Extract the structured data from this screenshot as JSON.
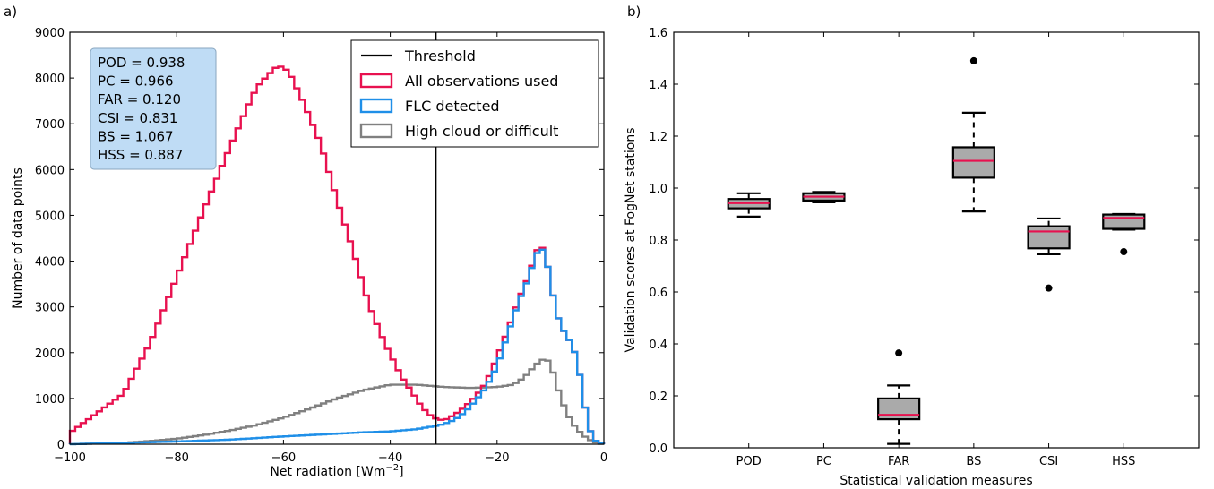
{
  "chart_data": [
    {
      "type": "histogram",
      "panel_label": "a)",
      "xlabel_main": "Net radiation [Wm",
      "xlabel_sup": "−2",
      "xlabel_tail": "]",
      "ylabel": "Number of data points",
      "xlim": [
        -100,
        0
      ],
      "ylim": [
        0,
        9000
      ],
      "xticks": [
        "−100",
        "−80",
        "−60",
        "−40",
        "−20",
        "0"
      ],
      "yticks": [
        "0",
        "1000",
        "2000",
        "3000",
        "4000",
        "5000",
        "6000",
        "7000",
        "8000",
        "9000"
      ],
      "bin_width": 1,
      "bins_start": -100,
      "threshold": -31.5,
      "stats": [
        "POD = 0.938",
        "PC = 0.966",
        "FAR = 0.120",
        "CSI = 0.831",
        "BS = 1.067",
        "HSS = 0.887"
      ],
      "colors": {
        "threshold": "#000000",
        "all": "#e8114f",
        "flc": "#1f8fe8",
        "high": "#808080",
        "stats_box": "#bfdcf5"
      },
      "legend": [
        "Threshold",
        "All observations used",
        "FLC detected",
        "High cloud or difficult"
      ],
      "series": [
        {
          "name": "All observations used",
          "x": [
            -100,
            -90,
            -85,
            -80,
            -75,
            -70,
            -67,
            -65,
            -63,
            -61,
            -59,
            -56,
            -53,
            -50,
            -47,
            -44,
            -41,
            -38,
            -36,
            -34,
            -32,
            -30,
            -28,
            -26,
            -24,
            -22,
            -20,
            -18,
            -16,
            -14,
            -13,
            -12,
            -11,
            -10,
            -9,
            -8,
            -7,
            -6,
            -5,
            -4,
            -3,
            -2,
            -1,
            0
          ],
          "values": [
            250,
            1100,
            2200,
            3650,
            5100,
            6500,
            7300,
            7800,
            8050,
            8280,
            8150,
            7400,
            6550,
            5350,
            4250,
            3050,
            2200,
            1500,
            1150,
            800,
            580,
            520,
            640,
            820,
            1050,
            1350,
            1900,
            2500,
            3150,
            3700,
            4100,
            4380,
            4200,
            3550,
            2950,
            2550,
            2400,
            2150,
            1880,
            1150,
            450,
            120,
            30,
            0
          ]
        },
        {
          "name": "FLC detected",
          "x": [
            -100,
            -90,
            -80,
            -70,
            -60,
            -50,
            -45,
            -40,
            -35,
            -32,
            -30,
            -28,
            -26,
            -24,
            -22,
            -20,
            -18,
            -16,
            -14,
            -13,
            -12,
            -11,
            -10,
            -9,
            -8,
            -7,
            -6,
            -5,
            -4,
            -3,
            -2,
            -1,
            0
          ],
          "values": [
            0,
            30,
            60,
            100,
            170,
            230,
            260,
            280,
            330,
            390,
            440,
            530,
            700,
            950,
            1250,
            1700,
            2400,
            3100,
            3650,
            4050,
            4300,
            4200,
            3550,
            2950,
            2550,
            2400,
            2150,
            1880,
            1150,
            450,
            120,
            30,
            0
          ]
        },
        {
          "name": "High cloud or difficult",
          "x": [
            -100,
            -90,
            -85,
            -80,
            -75,
            -70,
            -65,
            -60,
            -55,
            -50,
            -45,
            -40,
            -35,
            -30,
            -25,
            -20,
            -17,
            -15,
            -13,
            -12,
            -11,
            -10,
            -9,
            -8,
            -7,
            -6,
            -5,
            -4,
            -3,
            -2,
            -1,
            0
          ],
          "values": [
            0,
            30,
            70,
            120,
            200,
            300,
            420,
            580,
            780,
            1000,
            1180,
            1300,
            1300,
            1250,
            1230,
            1250,
            1300,
            1450,
            1700,
            1820,
            1870,
            1780,
            1350,
            1000,
            700,
            480,
            330,
            210,
            120,
            60,
            20,
            0
          ]
        }
      ]
    },
    {
      "type": "box",
      "panel_label": "b)",
      "xlabel": "Statistical validation measures",
      "ylabel": "Validation scores at FogNet stations",
      "ylim": [
        0.0,
        1.6
      ],
      "yticks": [
        "0.0",
        "0.2",
        "0.4",
        "0.6",
        "0.8",
        "1.0",
        "1.2",
        "1.4",
        "1.6"
      ],
      "categories": [
        "POD",
        "PC",
        "FAR",
        "BS",
        "CSI",
        "HSS"
      ],
      "colors": {
        "box": "#aaaaaa",
        "median": "#e8114f",
        "outline": "#000000"
      },
      "boxes": [
        {
          "whislo": 0.89,
          "q1": 0.922,
          "med": 0.942,
          "q3": 0.958,
          "whishi": 0.98,
          "fliers": []
        },
        {
          "whislo": 0.945,
          "q1": 0.952,
          "med": 0.967,
          "q3": 0.98,
          "whishi": 0.985,
          "fliers": []
        },
        {
          "whislo": 0.015,
          "q1": 0.11,
          "med": 0.127,
          "q3": 0.19,
          "whishi": 0.24,
          "fliers": [
            0.365
          ]
        },
        {
          "whislo": 0.91,
          "q1": 1.04,
          "med": 1.105,
          "q3": 1.157,
          "whishi": 1.29,
          "fliers": [
            1.49
          ]
        },
        {
          "whislo": 0.745,
          "q1": 0.768,
          "med": 0.833,
          "q3": 0.853,
          "whishi": 0.883,
          "fliers": [
            0.615
          ]
        },
        {
          "whislo": 0.84,
          "q1": 0.843,
          "med": 0.885,
          "q3": 0.898,
          "whishi": 0.9,
          "fliers": [
            0.755
          ]
        }
      ]
    }
  ]
}
